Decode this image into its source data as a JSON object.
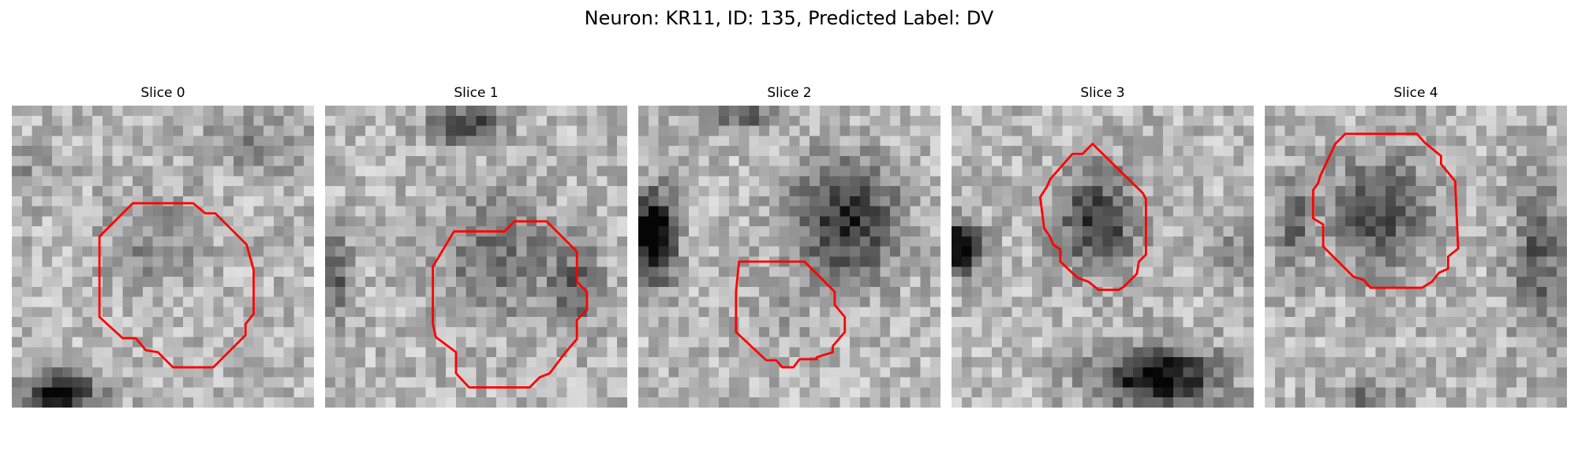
{
  "figure": {
    "title": "Neuron: KR11, ID: 135, Predicted Label: DV"
  },
  "colors": {
    "contour": "#ff0000",
    "background": "#ffffff"
  },
  "slices": [
    {
      "label": "Slice 0",
      "seed": 11
    },
    {
      "label": "Slice 1",
      "seed": 23
    },
    {
      "label": "Slice 2",
      "seed": 37
    },
    {
      "label": "Slice 3",
      "seed": 41
    },
    {
      "label": "Slice 4",
      "seed": 59
    }
  ]
}
